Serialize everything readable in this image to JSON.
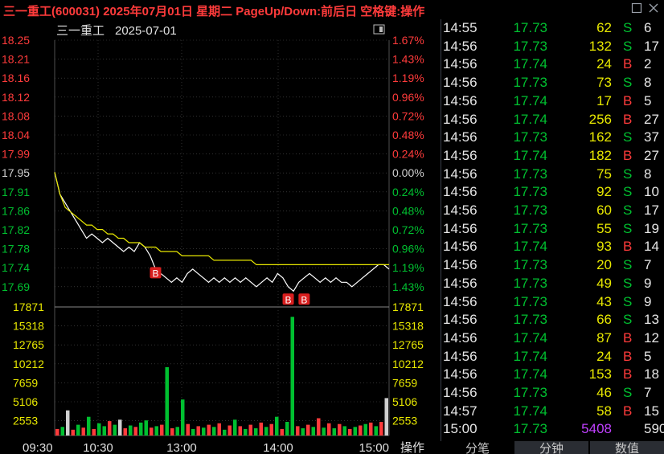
{
  "window": {
    "title": "三一重工(600031) 2025年07月01日 星期二 PageUp/Down:前后日 空格键:操作",
    "restore_icon": "restore-icon",
    "close_icon": "close-icon"
  },
  "chart": {
    "header_name": "三一重工",
    "header_date": "2025-07-01",
    "toggle_icon": "panel-toggle-icon",
    "action_label": "操作",
    "colors": {
      "up": "#ff3b3b",
      "down": "#00c030",
      "flat": "#d0d0d0",
      "price_line": "#ffffff",
      "avg_line": "#e8e800",
      "grid": "#505050",
      "volume_label": "#e8e800"
    },
    "buy_marker_label": "B"
  },
  "chart_data": {
    "type": "line",
    "price_ticks": [
      {
        "label": "18.25",
        "pct": "1.67%",
        "value": 18.25
      },
      {
        "label": "18.21",
        "pct": "1.43%",
        "value": 18.21
      },
      {
        "label": "18.16",
        "pct": "1.19%",
        "value": 18.16
      },
      {
        "label": "18.12",
        "pct": "0.96%",
        "value": 18.12
      },
      {
        "label": "18.08",
        "pct": "0.72%",
        "value": 18.08
      },
      {
        "label": "18.04",
        "pct": "0.48%",
        "value": 18.04
      },
      {
        "label": "17.99",
        "pct": "0.24%",
        "value": 17.99
      },
      {
        "label": "17.95",
        "pct": "0.00%",
        "value": 17.95
      },
      {
        "label": "17.91",
        "pct": "0.24%",
        "value": 17.91
      },
      {
        "label": "17.86",
        "pct": "0.48%",
        "value": 17.86
      },
      {
        "label": "17.82",
        "pct": "0.72%",
        "value": 17.82
      },
      {
        "label": "17.78",
        "pct": "0.96%",
        "value": 17.78
      },
      {
        "label": "17.74",
        "pct": "1.19%",
        "value": 17.74
      },
      {
        "label": "17.69",
        "pct": "1.43%",
        "value": 17.69
      }
    ],
    "volume_ticks": [
      "17871",
      "15318",
      "12765",
      "10212",
      "7659",
      "5106",
      "2553"
    ],
    "x_ticks": [
      "09:30",
      "10:30",
      "13:00",
      "14:00",
      "15:00"
    ],
    "price_range": [
      17.65,
      18.27
    ],
    "volume_max": 17871,
    "price_series": [
      17.95,
      17.9,
      17.88,
      17.86,
      17.84,
      17.82,
      17.8,
      17.81,
      17.8,
      17.79,
      17.8,
      17.79,
      17.78,
      17.77,
      17.78,
      17.77,
      17.79,
      17.78,
      17.76,
      17.73,
      17.72,
      17.71,
      17.7,
      17.71,
      17.7,
      17.72,
      17.73,
      17.72,
      17.71,
      17.7,
      17.71,
      17.7,
      17.71,
      17.7,
      17.71,
      17.7,
      17.71,
      17.7,
      17.69,
      17.7,
      17.71,
      17.7,
      17.72,
      17.71,
      17.69,
      17.68,
      17.7,
      17.71,
      17.72,
      17.71,
      17.7,
      17.71,
      17.7,
      17.71,
      17.7,
      17.7,
      17.69,
      17.7,
      17.71,
      17.72,
      17.73,
      17.74,
      17.74,
      17.73
    ],
    "avg_series": [
      17.95,
      17.9,
      17.87,
      17.86,
      17.85,
      17.84,
      17.83,
      17.83,
      17.82,
      17.82,
      17.81,
      17.81,
      17.8,
      17.8,
      17.79,
      17.79,
      17.79,
      17.78,
      17.78,
      17.78,
      17.77,
      17.77,
      17.77,
      17.77,
      17.76,
      17.76,
      17.76,
      17.76,
      17.76,
      17.76,
      17.75,
      17.75,
      17.75,
      17.75,
      17.75,
      17.75,
      17.75,
      17.75,
      17.74,
      17.74,
      17.74,
      17.74,
      17.74,
      17.74,
      17.74,
      17.74,
      17.74,
      17.74,
      17.74,
      17.74,
      17.74,
      17.74,
      17.74,
      17.74,
      17.74,
      17.74,
      17.74,
      17.74,
      17.74,
      17.74,
      17.74,
      17.74,
      17.74,
      17.74
    ],
    "buy_markers": [
      {
        "index": 19,
        "price": 17.74
      },
      {
        "index": 44,
        "price": 17.68
      },
      {
        "index": 47,
        "price": 17.68
      }
    ],
    "volume_series": [
      900,
      1200,
      3500,
      800,
      1500,
      1100,
      2600,
      900,
      1700,
      1300,
      2000,
      1500,
      2200,
      1000,
      1400,
      1200,
      1800,
      2100,
      1100,
      1300,
      1500,
      9500,
      1000,
      1200,
      5000,
      1600,
      900,
      1300,
      1100,
      1500,
      1200,
      1700,
      800,
      1400,
      2200,
      1300,
      900,
      1500,
      1000,
      1800,
      1200,
      1600,
      2600,
      900,
      1900,
      16500,
      1300,
      1000,
      1500,
      1200,
      2400,
      1100,
      1700,
      1000,
      1600,
      1300,
      900,
      1200,
      1400,
      1600,
      1800,
      1300,
      1900,
      5200
    ],
    "volume_dirs": [
      "up",
      "down",
      "flat",
      "up",
      "down",
      "up",
      "down",
      "up",
      "down",
      "down",
      "up",
      "down",
      "flat",
      "up",
      "down",
      "up",
      "down",
      "down",
      "up",
      "down",
      "up",
      "down",
      "up",
      "down",
      "down",
      "up",
      "down",
      "up",
      "down",
      "up",
      "down",
      "up",
      "down",
      "up",
      "down",
      "up",
      "down",
      "up",
      "down",
      "up",
      "down",
      "up",
      "down",
      "up",
      "down",
      "down",
      "up",
      "down",
      "up",
      "down",
      "up",
      "down",
      "up",
      "down",
      "up",
      "down",
      "up",
      "down",
      "up",
      "down",
      "up",
      "down",
      "up",
      "flat"
    ]
  },
  "ticks": [
    {
      "time": "14:55",
      "price": "17.73",
      "vol": "62",
      "bs": "S",
      "cnt": "6"
    },
    {
      "time": "14:56",
      "price": "17.73",
      "vol": "132",
      "bs": "S",
      "cnt": "17"
    },
    {
      "time": "14:56",
      "price": "17.74",
      "vol": "24",
      "bs": "B",
      "cnt": "2"
    },
    {
      "time": "14:56",
      "price": "17.73",
      "vol": "73",
      "bs": "S",
      "cnt": "8"
    },
    {
      "time": "14:56",
      "price": "17.74",
      "vol": "17",
      "bs": "B",
      "cnt": "5"
    },
    {
      "time": "14:56",
      "price": "17.74",
      "vol": "256",
      "bs": "B",
      "cnt": "27"
    },
    {
      "time": "14:56",
      "price": "17.73",
      "vol": "162",
      "bs": "S",
      "cnt": "37"
    },
    {
      "time": "14:56",
      "price": "17.74",
      "vol": "182",
      "bs": "B",
      "cnt": "27"
    },
    {
      "time": "14:56",
      "price": "17.73",
      "vol": "75",
      "bs": "S",
      "cnt": "8"
    },
    {
      "time": "14:56",
      "price": "17.73",
      "vol": "92",
      "bs": "S",
      "cnt": "10"
    },
    {
      "time": "14:56",
      "price": "17.73",
      "vol": "60",
      "bs": "S",
      "cnt": "17"
    },
    {
      "time": "14:56",
      "price": "17.73",
      "vol": "55",
      "bs": "S",
      "cnt": "19"
    },
    {
      "time": "14:56",
      "price": "17.74",
      "vol": "93",
      "bs": "B",
      "cnt": "14"
    },
    {
      "time": "14:56",
      "price": "17.73",
      "vol": "20",
      "bs": "S",
      "cnt": "7"
    },
    {
      "time": "14:56",
      "price": "17.73",
      "vol": "49",
      "bs": "S",
      "cnt": "9"
    },
    {
      "time": "14:56",
      "price": "17.73",
      "vol": "43",
      "bs": "S",
      "cnt": "9"
    },
    {
      "time": "14:56",
      "price": "17.73",
      "vol": "66",
      "bs": "S",
      "cnt": "13"
    },
    {
      "time": "14:56",
      "price": "17.74",
      "vol": "87",
      "bs": "B",
      "cnt": "12"
    },
    {
      "time": "14:56",
      "price": "17.74",
      "vol": "24",
      "bs": "B",
      "cnt": "5"
    },
    {
      "time": "14:56",
      "price": "17.74",
      "vol": "153",
      "bs": "B",
      "cnt": "18"
    },
    {
      "time": "14:56",
      "price": "17.73",
      "vol": "46",
      "bs": "S",
      "cnt": "7"
    },
    {
      "time": "14:57",
      "price": "17.74",
      "vol": "58",
      "bs": "B",
      "cnt": "15"
    },
    {
      "time": "15:00",
      "price": "17.73",
      "vol": "5408",
      "bs": "",
      "cnt": "590"
    }
  ],
  "tabs": [
    "分笔",
    "分钟",
    "数值"
  ]
}
